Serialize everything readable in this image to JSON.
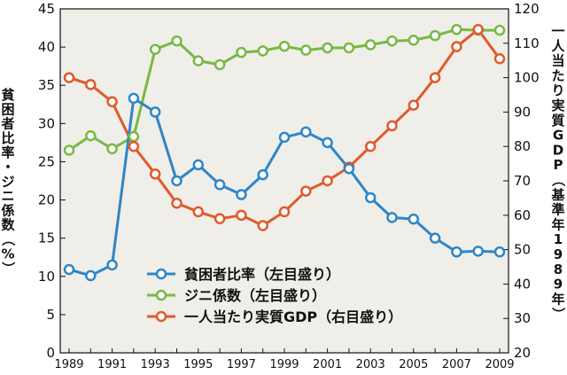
{
  "chart_data": {
    "type": "line",
    "x": [
      1989,
      1990,
      1991,
      1992,
      1993,
      1994,
      1995,
      1996,
      1997,
      1998,
      1999,
      2000,
      2001,
      2002,
      2003,
      2004,
      2005,
      2006,
      2007,
      2008,
      2009
    ],
    "x_tick_labels": [
      "1989",
      "1991",
      "1993",
      "1995",
      "1997",
      "1999",
      "2001",
      "2003",
      "2005",
      "2007",
      "2009"
    ],
    "ylim_left": [
      0,
      45
    ],
    "ylim_right": [
      20,
      120
    ],
    "y_ticks_left": [
      "0",
      "5",
      "10",
      "15",
      "20",
      "25",
      "30",
      "35",
      "40",
      "45"
    ],
    "y_ticks_right": [
      "20",
      "30",
      "40",
      "50",
      "60",
      "70",
      "80",
      "90",
      "100",
      "110",
      "120"
    ],
    "ylabel_left": [
      "貧",
      "困",
      "者",
      "比",
      "率",
      "・",
      "ジ",
      "ニ",
      "係",
      "数",
      "（",
      "%",
      "）"
    ],
    "ylabel_right": [
      "一",
      "人",
      "当",
      "た",
      "り",
      "実",
      "質",
      "G",
      "D",
      "P",
      "（",
      "基",
      "準",
      "年",
      "1",
      "9",
      "8",
      "9",
      "年",
      "）"
    ],
    "grid": false,
    "legend_position": "bottom-center",
    "series": [
      {
        "name": "貧困者比率（左目盛り）",
        "axis": "left",
        "color": "#2e86c8",
        "values": [
          10.9,
          10.1,
          11.5,
          33.3,
          31.5,
          22.5,
          24.6,
          22.0,
          20.7,
          23.3,
          28.2,
          28.9,
          27.5,
          24.1,
          20.3,
          17.7,
          17.5,
          15.0,
          13.2,
          13.3,
          13.2
        ]
      },
      {
        "name": "ジニ係数（左目盛り）",
        "axis": "left",
        "color": "#79b843",
        "values": [
          26.5,
          28.4,
          26.7,
          28.3,
          39.7,
          40.8,
          38.2,
          37.7,
          39.3,
          39.5,
          40.1,
          39.6,
          39.9,
          39.9,
          40.3,
          40.8,
          40.9,
          41.5,
          42.3,
          42.2,
          42.2
        ]
      },
      {
        "name": "一人当たり実質GDP（右目盛り）",
        "axis": "right",
        "color": "#e05a2b",
        "values": [
          100,
          98,
          93,
          80,
          72,
          63.5,
          61,
          59,
          60,
          57,
          61,
          67,
          70,
          74,
          80,
          86,
          92,
          100,
          109,
          114,
          105.5
        ]
      }
    ]
  }
}
